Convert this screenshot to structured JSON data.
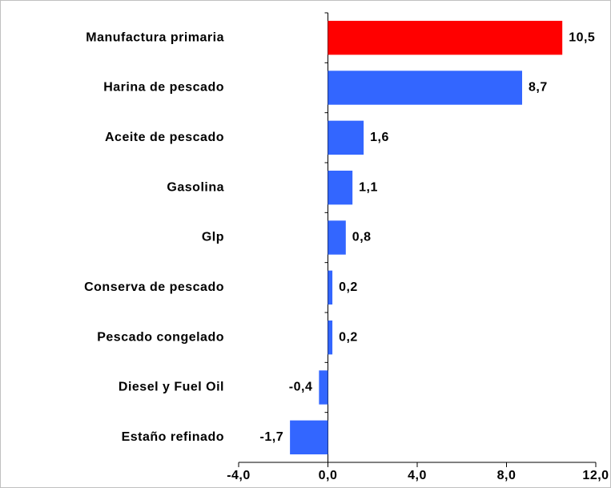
{
  "chart_data": {
    "type": "hbar",
    "categories": [
      "Manufactura primaria",
      "Harina de pescado",
      "Aceite de pescado",
      "Gasolina",
      "Glp",
      "Conserva de pescado",
      "Pescado congelado",
      "Diesel y Fuel Oil",
      "Estaño refinado"
    ],
    "values": [
      10.5,
      8.7,
      1.6,
      1.1,
      0.8,
      0.2,
      0.2,
      -0.4,
      -1.7
    ],
    "value_labels": [
      "10,5",
      "8,7",
      "1,6",
      "1,1",
      "0,8",
      "0,2",
      "0,2",
      "-0,4",
      "-1,7"
    ],
    "colors": [
      "#ff0000",
      "#3366ff",
      "#3366ff",
      "#3366ff",
      "#3366ff",
      "#3366ff",
      "#3366ff",
      "#3366ff",
      "#3366ff"
    ],
    "xlim": [
      -4,
      12
    ],
    "xticks": [
      {
        "value": -4,
        "label": "-4,0"
      },
      {
        "value": 0,
        "label": "0,0"
      },
      {
        "value": 4,
        "label": "4,0"
      },
      {
        "value": 8,
        "label": "8,0"
      },
      {
        "value": 12,
        "label": "12,0"
      }
    ]
  }
}
